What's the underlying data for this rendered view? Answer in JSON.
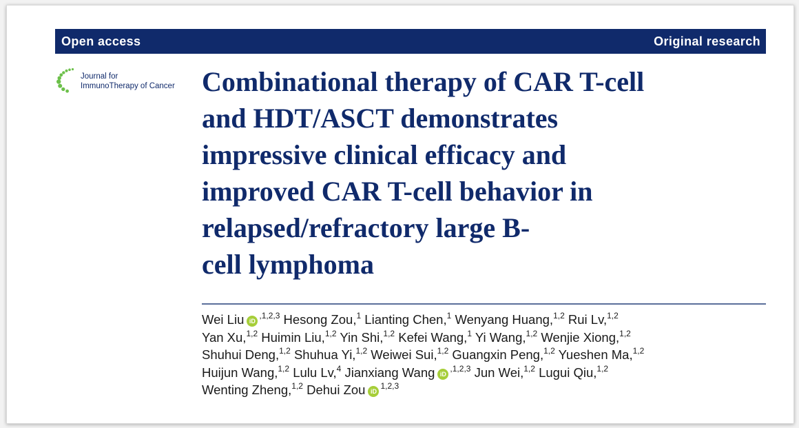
{
  "banner": {
    "left": "Open access",
    "right": "Original research"
  },
  "journal": {
    "line1": "Journal for",
    "line2": "ImmunoTherapy of Cancer",
    "logo_icon": "dotted-arc-logo",
    "logo_color": "#6cc04a"
  },
  "title_lines": [
    "Combinational therapy of CAR T-cell",
    "and HDT/ASCT demonstrates",
    "impressive clinical efficacy and",
    "improved CAR T-cell behavior in",
    "relapsed/refractory large B-",
    "cell lymphoma"
  ],
  "orcid_label": "iD",
  "orcid_icon": "orcid-icon",
  "colors": {
    "navy": "#102a6b",
    "orcid_green": "#a6ce39"
  },
  "authors": [
    {
      "name": "Wei Liu",
      "orcid": true,
      "sup": ",1,2,3",
      "sep": " "
    },
    {
      "name": "Hesong Zou,",
      "sup": "1",
      "sep": " "
    },
    {
      "name": "Lianting Chen,",
      "sup": "1",
      "sep": " "
    },
    {
      "name": "Wenyang Huang,",
      "sup": "1,2",
      "sep": " "
    },
    {
      "name": "Rui Lv,",
      "sup": "1,2",
      "sep": " "
    },
    {
      "name": "Yan Xu,",
      "sup": "1,2",
      "sep": " "
    },
    {
      "name": "Huimin Liu,",
      "sup": "1,2",
      "sep": " "
    },
    {
      "name": "Yin Shi,",
      "sup": "1,2",
      "sep": " "
    },
    {
      "name": "Kefei Wang,",
      "sup": "1",
      "sep": " "
    },
    {
      "name": "Yi Wang,",
      "sup": "1,2",
      "sep": " "
    },
    {
      "name": "Wenjie Xiong,",
      "sup": "1,2",
      "sep": " "
    },
    {
      "name": "Shuhui Deng,",
      "sup": "1,2",
      "sep": " "
    },
    {
      "name": "Shuhua Yi,",
      "sup": "1,2",
      "sep": " "
    },
    {
      "name": "Weiwei Sui,",
      "sup": "1,2",
      "sep": " "
    },
    {
      "name": "Guangxin Peng,",
      "sup": "1,2",
      "sep": " "
    },
    {
      "name": "Yueshen Ma,",
      "sup": "1,2",
      "sep": " "
    },
    {
      "name": "Huijun Wang,",
      "sup": "1,2",
      "sep": " "
    },
    {
      "name": "Lulu Lv,",
      "sup": "4",
      "sep": " "
    },
    {
      "name": "Jianxiang Wang",
      "orcid": true,
      "sup": ",1,2,3",
      "sep": " "
    },
    {
      "name": "Jun Wei,",
      "sup": "1,2",
      "sep": " "
    },
    {
      "name": "Lugui Qiu,",
      "sup": "1,2",
      "sep": " "
    },
    {
      "name": "Wenting Zheng,",
      "sup": "1,2",
      "sep": " "
    },
    {
      "name": "Dehui Zou",
      "orcid": true,
      "sup": "1,2,3",
      "sep": ""
    }
  ]
}
